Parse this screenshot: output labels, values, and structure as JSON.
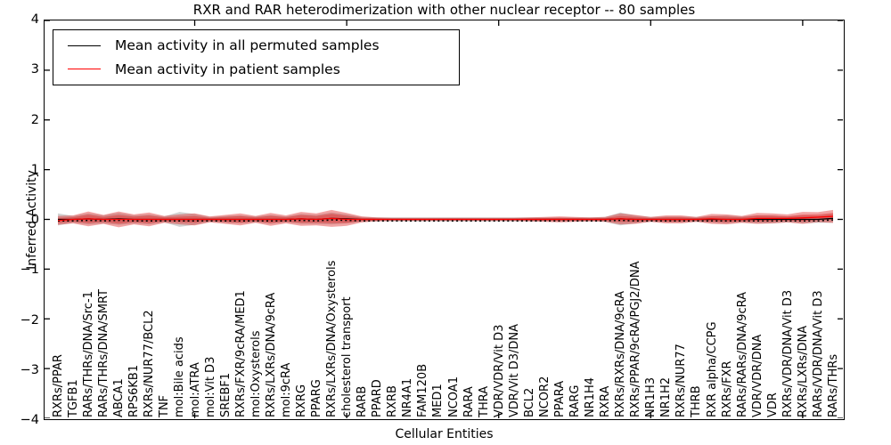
{
  "title": "RXR and RAR heterodimerization with other nuclear receptor -- 80 samples",
  "legend": {
    "items": [
      {
        "label": "Mean activity in all permuted samples",
        "color": "#000000"
      },
      {
        "label": "Mean activity in patient samples",
        "color": "#ff0000"
      }
    ]
  },
  "axes": {
    "xlabel": "Cellular Entities",
    "ylabel": "Inferred Activity",
    "yticks": [
      4,
      3,
      2,
      1,
      0,
      -1,
      -2,
      -3,
      -4
    ],
    "ylim": [
      -4,
      4
    ]
  },
  "chart_data": {
    "type": "area",
    "title": "RXR and RAR heterodimerization with other nuclear receptor -- 80 samples",
    "xlabel": "Cellular Entities",
    "ylabel": "Inferred Activity",
    "ylim": [
      -4,
      4
    ],
    "grid": false,
    "legend_position": "upper left",
    "categories": [
      "RXRs/PPAR",
      "TGFB1",
      "RARs/THRs/DNA/Src-1",
      "RARs/THRs/DNA/SMRT",
      "ABCA1",
      "RPS6KB1",
      "RXRs/NUR77/BCL2",
      "TNF",
      "mol:Bile acids",
      "mol:ATRA",
      "mol:Vit D3",
      "SREBF1",
      "RXRs/FXR/9cRA/MED1",
      "mol:Oxysterols",
      "RXRs/LXRs/DNA/9cRA",
      "mol:9cRA",
      "RXRG",
      "PPARG",
      "RXRs/LXRs/DNA/Oxysterols",
      "cholesterol transport",
      "RARB",
      "PPARD",
      "RXRB",
      "NR4A1",
      "FAM120B",
      "MED1",
      "NCOA1",
      "RARA",
      "THRA",
      "VDR/VDR/Vit D3",
      "VDR/Vit D3/DNA",
      "BCL2",
      "NCOR2",
      "PPARA",
      "RARG",
      "NR1H4",
      "RXRA",
      "RXRs/RXRs/DNA/9cRA",
      "RXRs/PPAR/9cRA/PGJ2/DNA",
      "NR1H3",
      "NR1H2",
      "RXRs/NUR77",
      "THRB",
      "RXR alpha/CCPG",
      "RXRs/FXR",
      "RARs/RARs/DNA/9cRA",
      "VDR/VDR/DNA",
      "VDR",
      "RXRs/VDR/DNA/Vit D3",
      "RXRs/LXRs/DNA",
      "RARs/VDR/DNA/Vit D3",
      "RARs/THRs"
    ],
    "series": [
      {
        "name": "Mean activity in all permuted samples",
        "line_color": "#000000",
        "band_color": "#8c8c8c",
        "mean": [
          0,
          0,
          0.01,
          0,
          0.01,
          0,
          0,
          0,
          0,
          0,
          0,
          0,
          0,
          0,
          0,
          0,
          0.01,
          0,
          0.02,
          0.01,
          0,
          0,
          0,
          0,
          0,
          0,
          0,
          0,
          0,
          0,
          0,
          0,
          0,
          0,
          0,
          0,
          0,
          0.01,
          0,
          0,
          0,
          0,
          0,
          0,
          0,
          0,
          0,
          0,
          0,
          0,
          0,
          0.02
        ],
        "std": [
          0.12,
          0.07,
          0.11,
          0.08,
          0.12,
          0.08,
          0.1,
          0.06,
          0.15,
          0.11,
          0.05,
          0.07,
          0.08,
          0.06,
          0.09,
          0.06,
          0.1,
          0.09,
          0.12,
          0.09,
          0.05,
          0.04,
          0.04,
          0.04,
          0.04,
          0.04,
          0.04,
          0.04,
          0.04,
          0.04,
          0.04,
          0.04,
          0.04,
          0.04,
          0.04,
          0.04,
          0.05,
          0.13,
          0.08,
          0.05,
          0.06,
          0.06,
          0.05,
          0.07,
          0.08,
          0.06,
          0.08,
          0.08,
          0.06,
          0.08,
          0.07,
          0.09
        ]
      },
      {
        "name": "Mean activity in patient samples",
        "line_color": "#ff0000",
        "band_color": "#de2626",
        "mean": [
          -0.02,
          0,
          0.01,
          0,
          0,
          0,
          0,
          0,
          0,
          0,
          0,
          0,
          0,
          0,
          0,
          0,
          0.01,
          0,
          0.02,
          0,
          0,
          0,
          0,
          0,
          0,
          0,
          0,
          0,
          0,
          0,
          0,
          0,
          0,
          0,
          0,
          0,
          0,
          0.01,
          0,
          0,
          0,
          0,
          0,
          0.01,
          0,
          0,
          0.02,
          0.02,
          0.02,
          0.03,
          0.045,
          0.06
        ],
        "std": [
          0.09,
          0.08,
          0.15,
          0.09,
          0.16,
          0.1,
          0.14,
          0.07,
          0.1,
          0.12,
          0.06,
          0.09,
          0.12,
          0.07,
          0.13,
          0.08,
          0.14,
          0.12,
          0.17,
          0.13,
          0.06,
          0.04,
          0.03,
          0.03,
          0.03,
          0.03,
          0.03,
          0.03,
          0.03,
          0.03,
          0.03,
          0.04,
          0.05,
          0.06,
          0.05,
          0.04,
          0.05,
          0.11,
          0.09,
          0.05,
          0.08,
          0.08,
          0.05,
          0.1,
          0.1,
          0.07,
          0.11,
          0.1,
          0.08,
          0.12,
          0.1,
          0.13
        ]
      }
    ]
  }
}
